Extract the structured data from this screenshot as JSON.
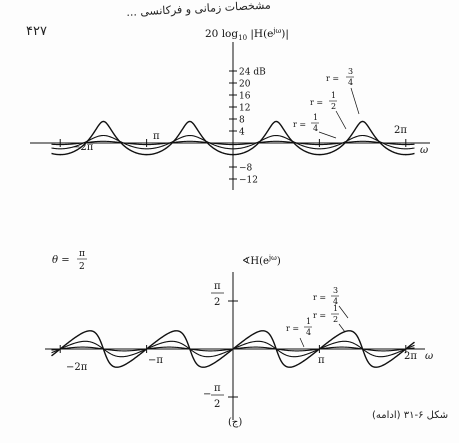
{
  "header": {
    "title": "مشخصات زمانی و فرکانسی ...",
    "page_number": "۴۲۷"
  },
  "figure_caption": "شکل ۶-۳۱ (ادامه)",
  "panel_id": "(ج)",
  "chart_data": [
    {
      "type": "line",
      "title": "20 log10 |H(e^jω)|",
      "title_parts": {
        "prefix": "20 log",
        "sub": "10",
        "mid": " |H(e",
        "sup": "jω",
        "suffix": ")|"
      },
      "xlabel": "ω",
      "ylabel": "dB",
      "xlim": [
        -6.6,
        6.6
      ],
      "ylim": [
        -14,
        28
      ],
      "x_tick_labels": [
        "−2π",
        "π",
        "2π"
      ],
      "y_ticks": [
        24,
        20,
        16,
        12,
        8,
        4,
        -8,
        -12
      ],
      "y_tick_labels": [
        "24 dB",
        "20",
        "16",
        "12",
        "8",
        "4",
        "−8",
        "−12"
      ],
      "theta": 1.5708,
      "series": [
        {
          "name": "r = 3/4",
          "r": 0.75
        },
        {
          "name": "r = 1/2",
          "r": 0.5
        },
        {
          "name": "r = 1/4",
          "r": 0.25
        }
      ],
      "annotations": [
        {
          "label": "r =",
          "num": "3",
          "den": "4"
        },
        {
          "label": "r =",
          "num": "1",
          "den": "2"
        },
        {
          "label": "r =",
          "num": "1",
          "den": "4"
        }
      ]
    },
    {
      "type": "line",
      "title": "∢H(e^jω)",
      "title_parts": {
        "prefix": "∢H(e",
        "sup": "jω",
        "suffix": ")"
      },
      "side_label": {
        "prefix": "θ =",
        "num": "π",
        "den": "2"
      },
      "xlabel": "ω",
      "xlim": [
        -6.6,
        6.6
      ],
      "ylim": [
        -1.9,
        1.9
      ],
      "x_tick_labels": [
        "−2π",
        "−π",
        "π",
        "2π"
      ],
      "y_tick_labels": [
        {
          "num": "π",
          "den": "2"
        },
        {
          "neg": "−",
          "num": "π",
          "den": "2"
        }
      ],
      "theta": 1.5708,
      "series": [
        {
          "name": "r = 3/4",
          "r": 0.75
        },
        {
          "name": "r = 1/2",
          "r": 0.5
        },
        {
          "name": "r = 1/4",
          "r": 0.25
        }
      ],
      "annotations": [
        {
          "label": "r =",
          "num": "3",
          "den": "4"
        },
        {
          "label": "r =",
          "num": "1",
          "den": "2"
        },
        {
          "label": "r =",
          "num": "1",
          "den": "4"
        }
      ]
    }
  ]
}
